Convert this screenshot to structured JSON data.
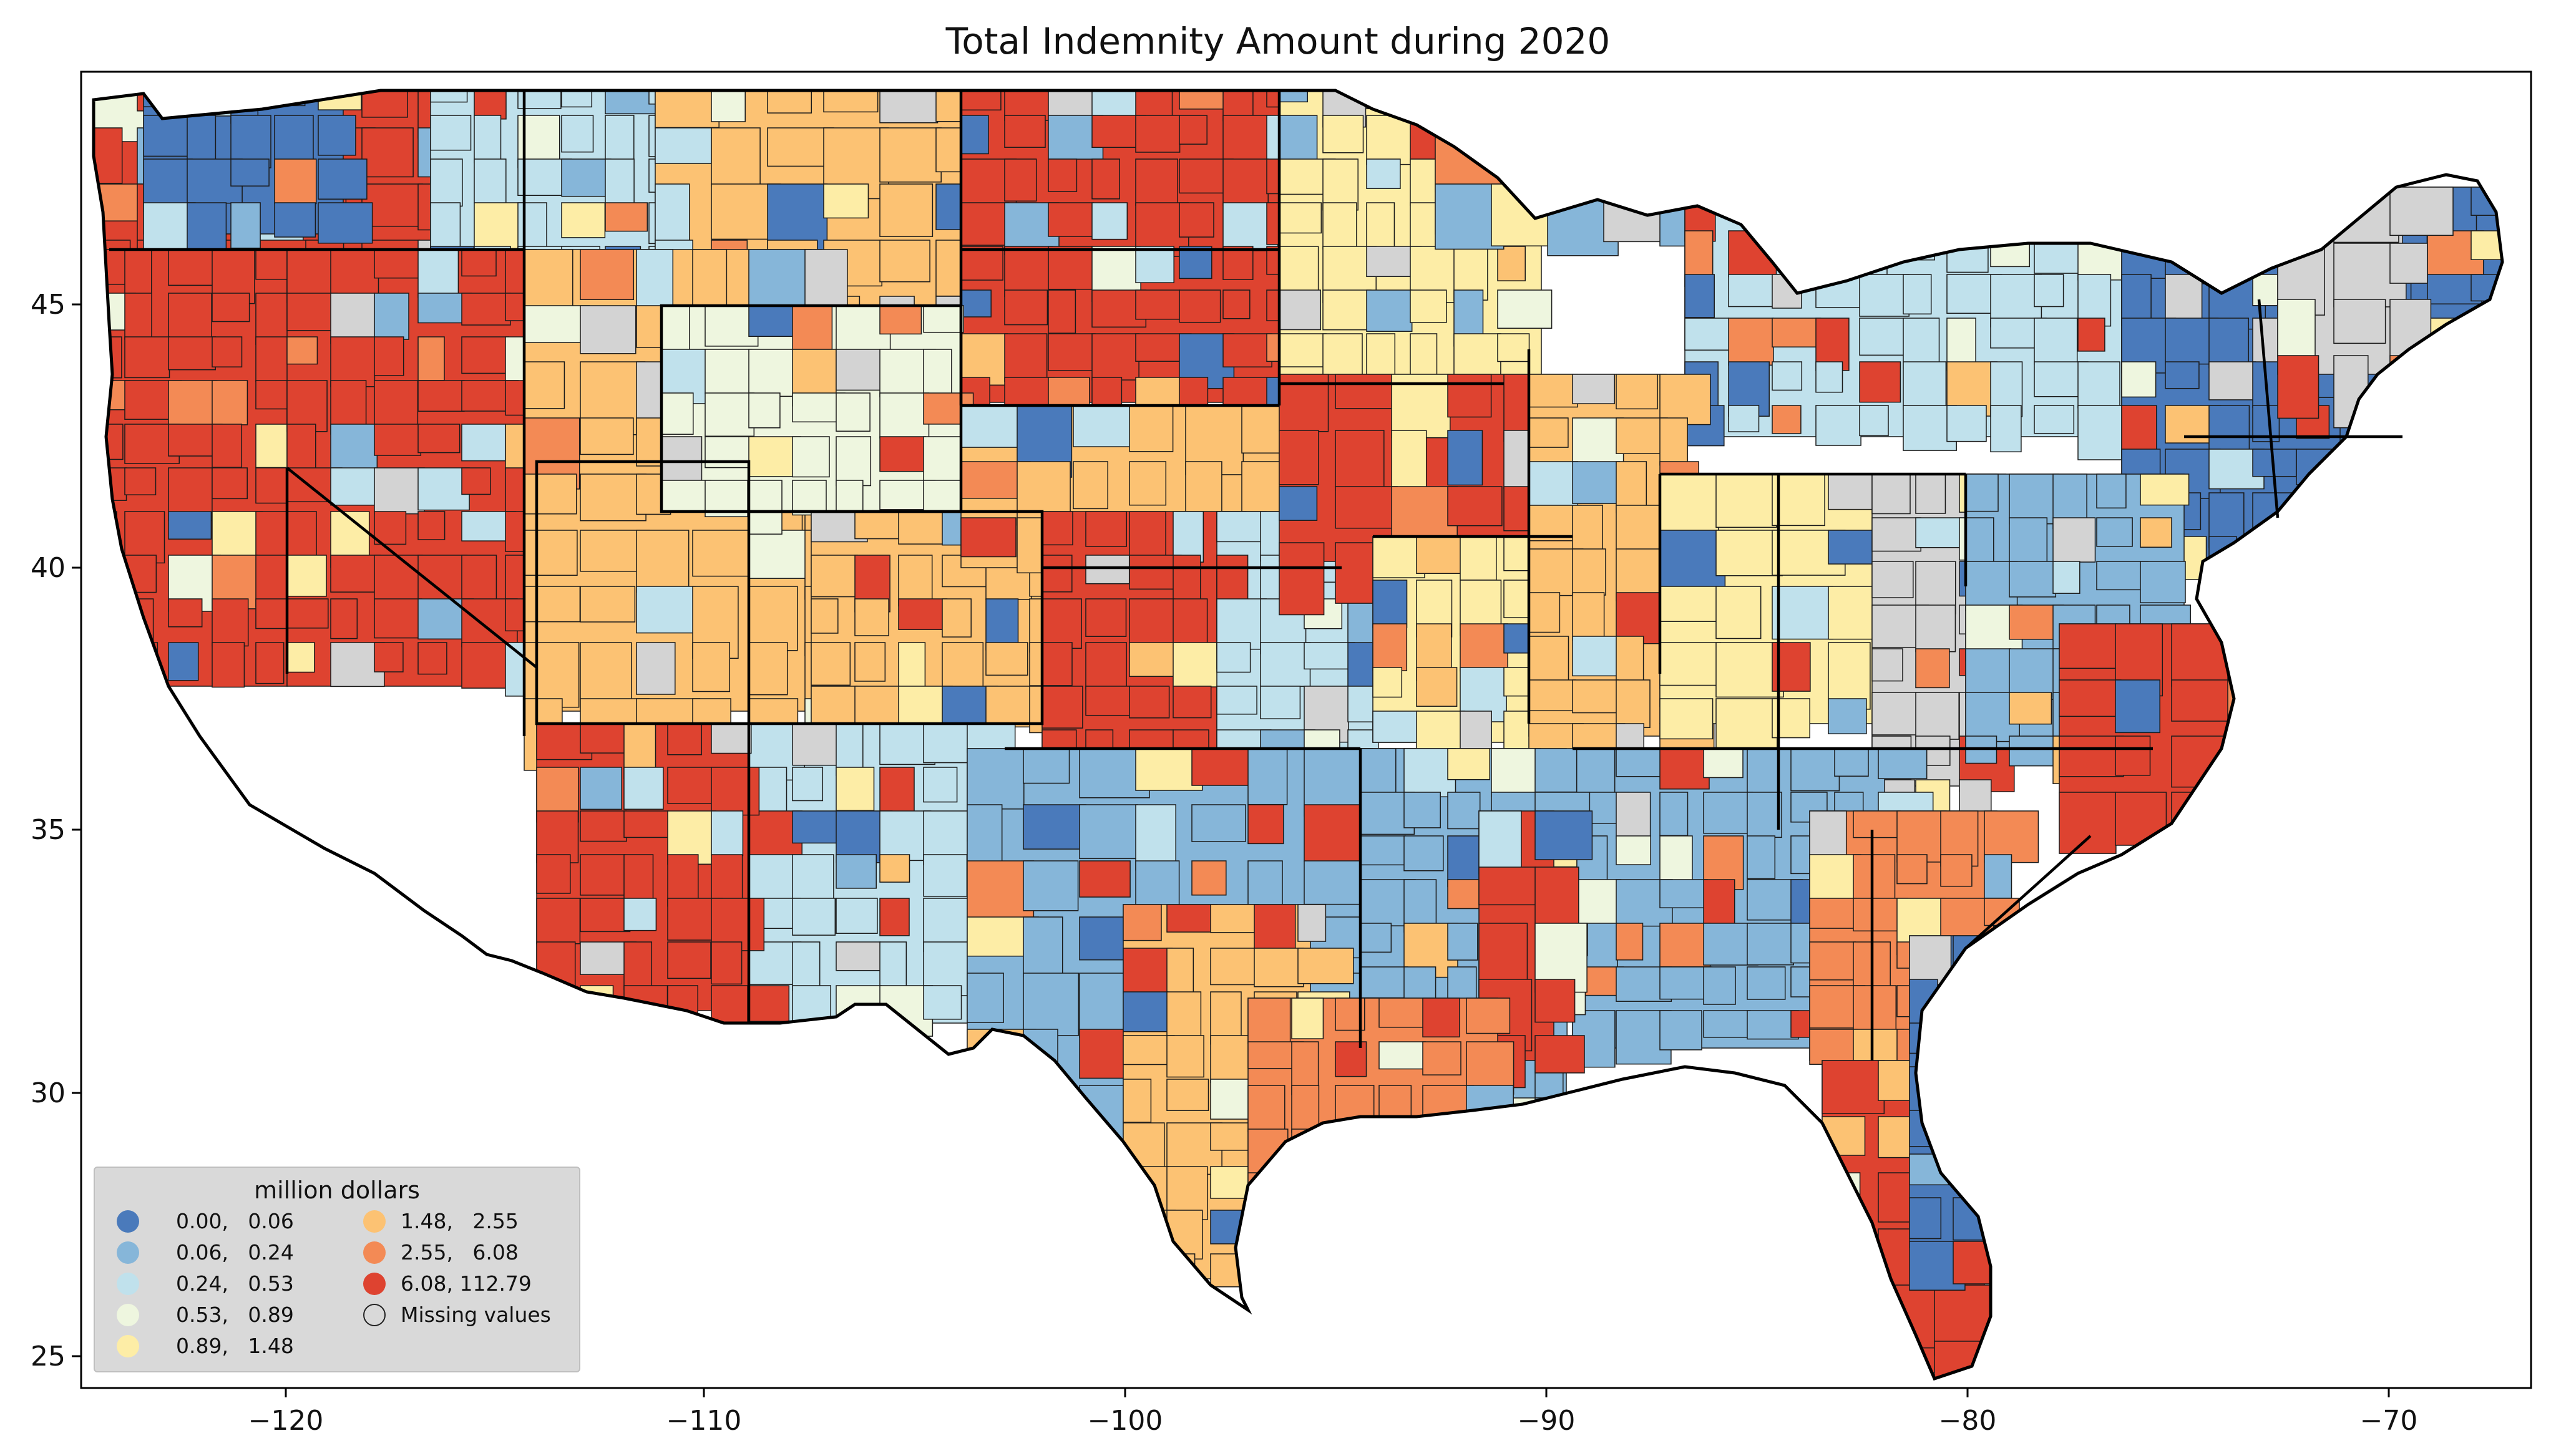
{
  "title": "Total Indemnity Amount during 2020",
  "map": {
    "x_ticks": [
      "−120",
      "−110",
      "−100",
      "−90",
      "−80",
      "−70"
    ],
    "y_ticks": [
      "45",
      "40",
      "35",
      "30",
      "25"
    ]
  },
  "colors": {
    "bin1": "#4a7abb",
    "bin2": "#86b6d9",
    "bin3": "#c0e1ec",
    "bin4": "#eef6df",
    "bin5": "#fdeda6",
    "bin6": "#fcc273",
    "bin7": "#f38a55",
    "bin8": "#de4330",
    "missing": "#d3d3d3"
  },
  "legend": {
    "title": "million dollars",
    "items": [
      {
        "label": "0.00,   0.06",
        "color": "#4a7abb"
      },
      {
        "label": "0.06,   0.24",
        "color": "#86b6d9"
      },
      {
        "label": "0.24,   0.53",
        "color": "#c0e1ec"
      },
      {
        "label": "0.53,   0.89",
        "color": "#eef6df"
      },
      {
        "label": "0.89,   1.48",
        "color": "#fdeda6"
      },
      {
        "label": "1.48,   2.55",
        "color": "#fcc273"
      },
      {
        "label": "2.55,   6.08",
        "color": "#f38a55"
      },
      {
        "label": "6.08, 112.79",
        "color": "#de4330"
      },
      {
        "label": "Missing values",
        "color": "none"
      }
    ]
  }
}
